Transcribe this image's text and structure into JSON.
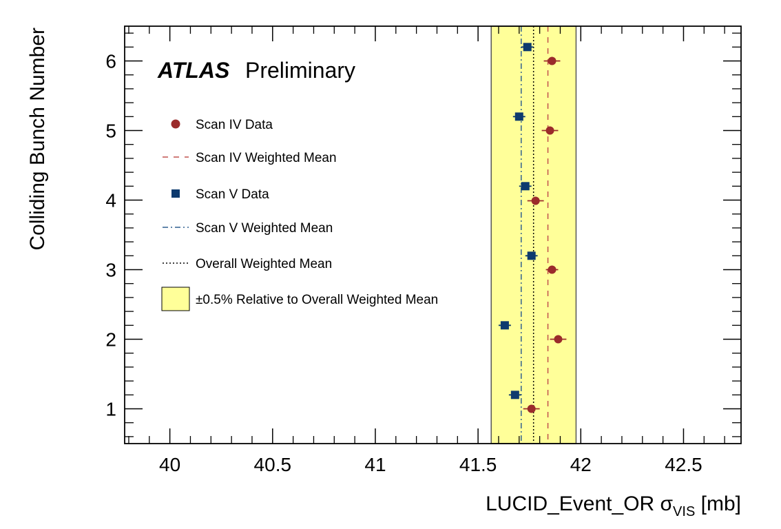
{
  "chart_data": {
    "type": "scatter",
    "title": "",
    "experiment": "ATLAS",
    "status": "Preliminary",
    "xlabel": {
      "main": "LUCID_Event_OR σ",
      "subscript": "VIS",
      "unit": "[mb]"
    },
    "ylabel": "Colliding Bunch Number",
    "xlim": [
      39.78,
      42.78
    ],
    "ylim": [
      0.5,
      6.5
    ],
    "x_ticks": [
      40,
      40.5,
      41,
      41.5,
      42,
      42.5
    ],
    "x_tick_labels": [
      "40",
      "40.5",
      "41",
      "41.5",
      "42",
      "42.5"
    ],
    "y_ticks": [
      1,
      2,
      3,
      4,
      5,
      6
    ],
    "y_tick_labels": [
      "1",
      "2",
      "3",
      "4",
      "5",
      "6"
    ],
    "grid": false,
    "legend_position": "top-left",
    "series": [
      {
        "name": "Scan IV Data",
        "marker": "circle",
        "color": "#9b2b2b",
        "points": [
          {
            "x": 41.76,
            "y": 1.0,
            "xerr": 0.04
          },
          {
            "x": 41.89,
            "y": 2.0,
            "xerr": 0.04
          },
          {
            "x": 41.86,
            "y": 3.0,
            "xerr": 0.03
          },
          {
            "x": 41.78,
            "y": 3.99,
            "xerr": 0.04
          },
          {
            "x": 41.85,
            "y": 5.0,
            "xerr": 0.04
          },
          {
            "x": 41.86,
            "y": 6.0,
            "xerr": 0.04
          }
        ]
      },
      {
        "name": "Scan V Data",
        "marker": "square",
        "color": "#0d3a6e",
        "points": [
          {
            "x": 41.68,
            "y": 1.2,
            "xerr": 0.03
          },
          {
            "x": 41.63,
            "y": 2.2,
            "xerr": 0.03
          },
          {
            "x": 41.76,
            "y": 3.2,
            "xerr": 0.03
          },
          {
            "x": 41.73,
            "y": 4.2,
            "xerr": 0.03
          },
          {
            "x": 41.7,
            "y": 5.2,
            "xerr": 0.03
          },
          {
            "x": 41.74,
            "y": 6.2,
            "xerr": 0.03
          }
        ]
      }
    ],
    "reference_lines": [
      {
        "name": "Scan IV Weighted Mean",
        "x": 41.84,
        "style": "dashed",
        "color": "#c0504d"
      },
      {
        "name": "Scan V Weighted Mean",
        "x": 41.71,
        "style": "dashdot",
        "color": "#2f5f8f"
      },
      {
        "name": "Overall Weighted Mean",
        "x": 41.77,
        "style": "dotted",
        "color": "#000000"
      }
    ],
    "band": {
      "name": "±0.5% Relative to Overall Weighted Mean",
      "x_min": 41.564,
      "x_max": 41.977,
      "color": "#ffff99",
      "edge_color": "#555555"
    },
    "legend": [
      {
        "label": "Scan IV Data",
        "kind": "circle",
        "color": "#9b2b2b"
      },
      {
        "label": "Scan IV Weighted Mean",
        "kind": "dashed",
        "color": "#c0504d"
      },
      {
        "label": "Scan V Data",
        "kind": "square",
        "color": "#0d3a6e"
      },
      {
        "label": "Scan V Weighted Mean",
        "kind": "dashdot",
        "color": "#2f5f8f"
      },
      {
        "label": "Overall Weighted Mean",
        "kind": "dotted",
        "color": "#000000"
      },
      {
        "label": "±0.5% Relative to Overall Weighted Mean",
        "kind": "box",
        "color": "#ffff99"
      }
    ]
  }
}
